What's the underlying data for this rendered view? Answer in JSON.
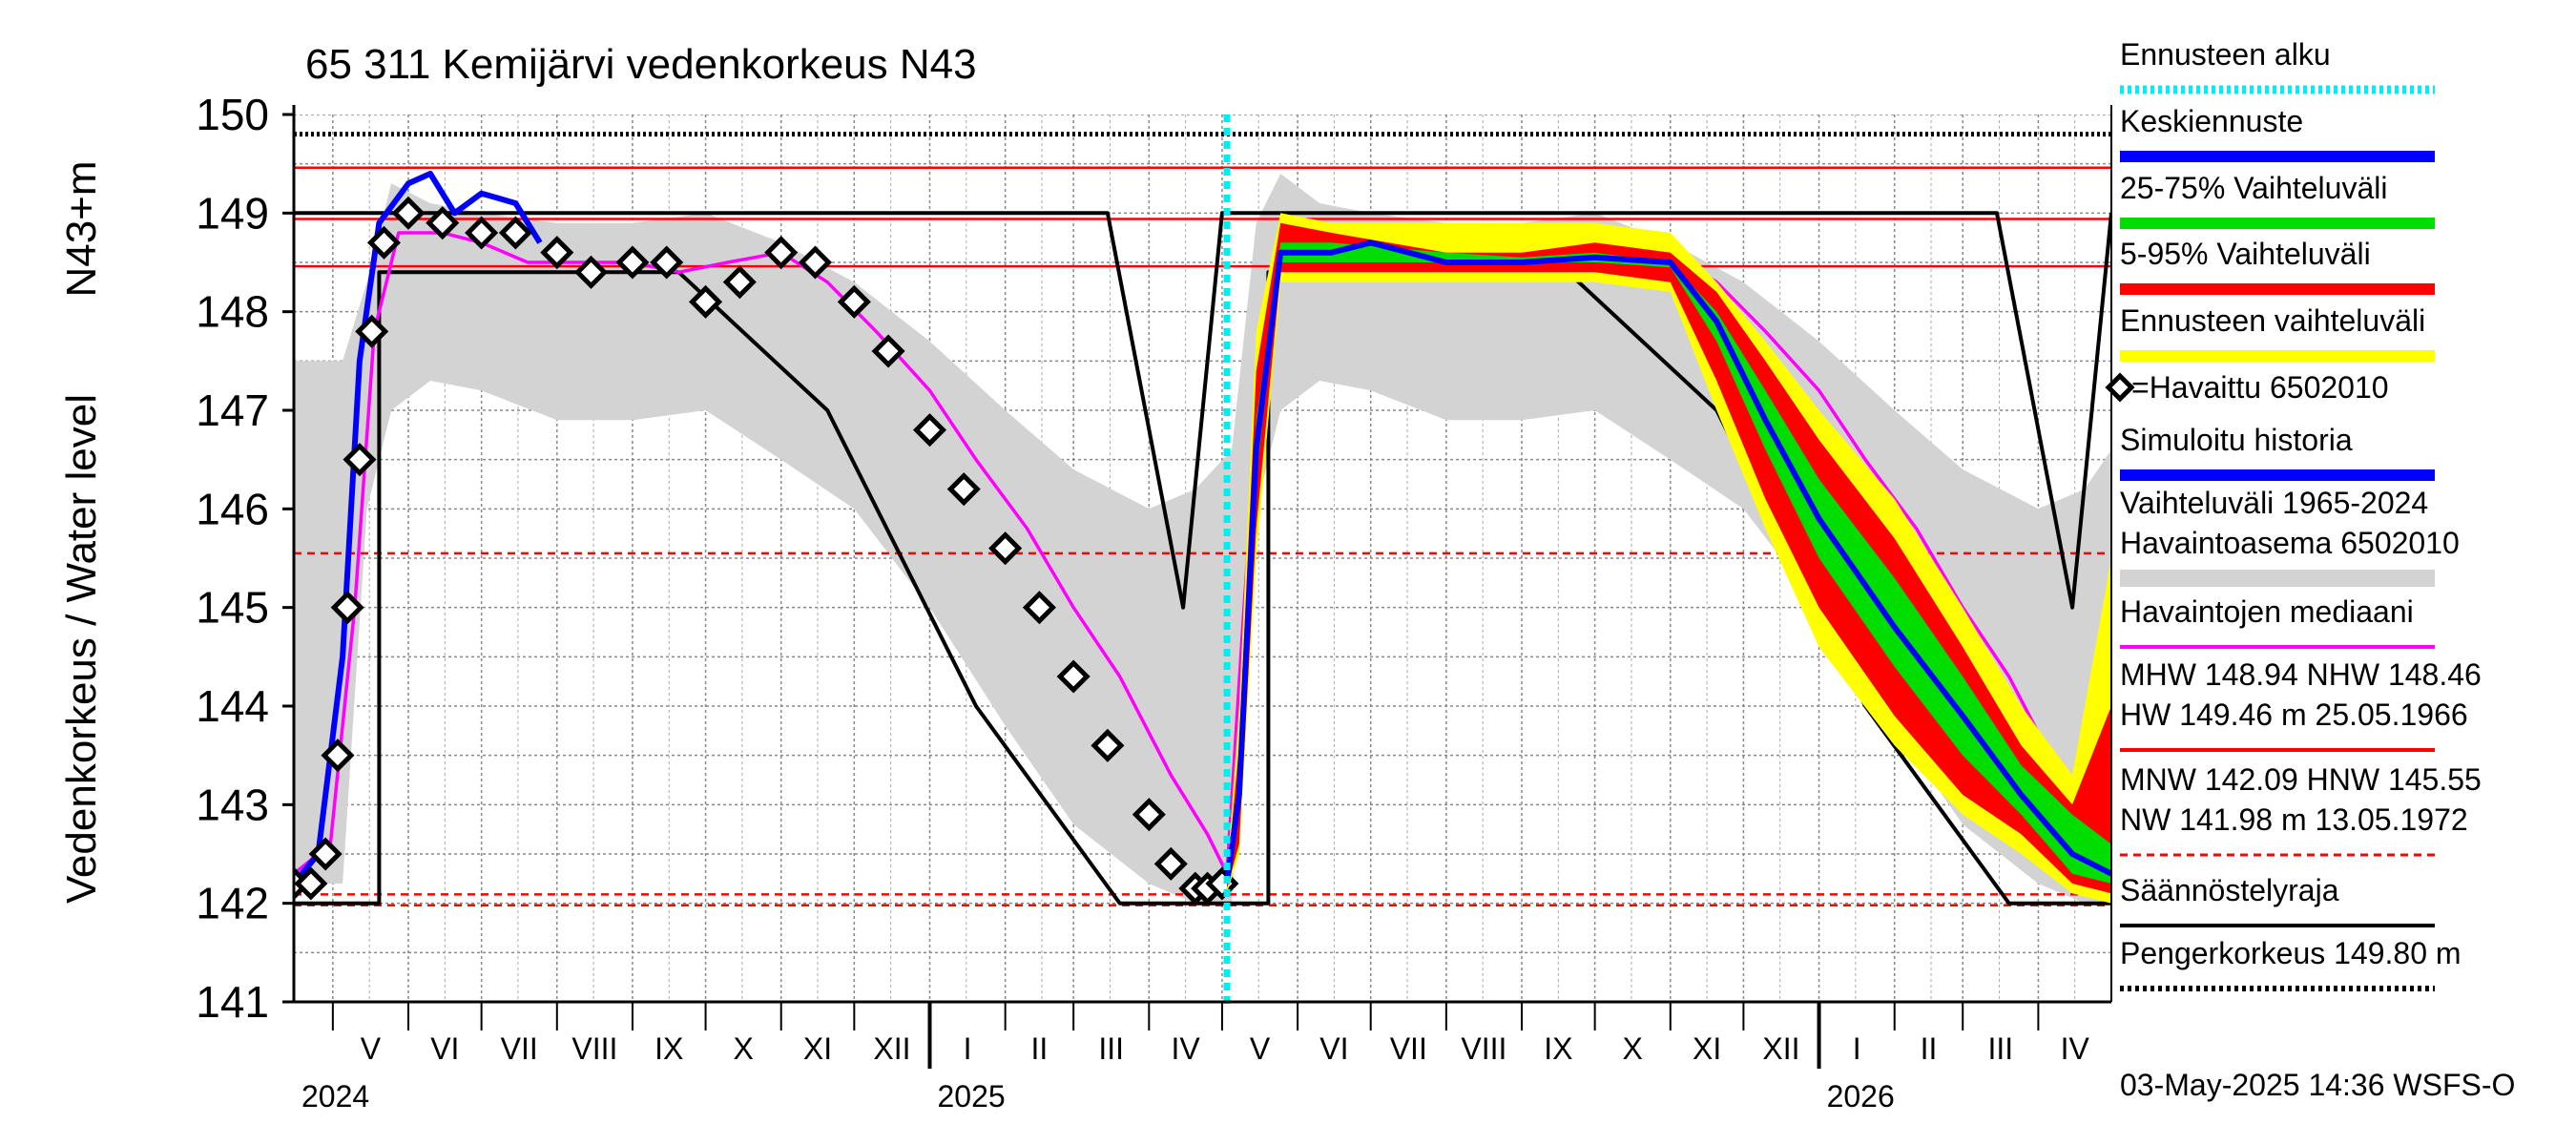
{
  "chart_data": {
    "type": "line",
    "title": "65 311 Kemijärvi vedenkorkeus N43",
    "ylabel": "Vedenkorkeus / Water level",
    "ylabel_unit": "N43+m",
    "ylim": [
      141,
      150
    ],
    "yticks": [
      "141",
      "142",
      "143",
      "144",
      "145",
      "146",
      "147",
      "148",
      "149",
      "150"
    ],
    "xlim": [
      "2024-04-15",
      "2026-05-01"
    ],
    "forecast_start": "2025-05-03",
    "month_labels": [
      {
        "date": "2024-05-01",
        "label": "V"
      },
      {
        "date": "2024-06-01",
        "label": "VI"
      },
      {
        "date": "2024-07-01",
        "label": "VII"
      },
      {
        "date": "2024-08-01",
        "label": "VIII"
      },
      {
        "date": "2024-09-01",
        "label": "IX"
      },
      {
        "date": "2024-10-01",
        "label": "X"
      },
      {
        "date": "2024-11-01",
        "label": "XI"
      },
      {
        "date": "2024-12-01",
        "label": "XII"
      },
      {
        "date": "2025-01-01",
        "label": "I"
      },
      {
        "date": "2025-02-01",
        "label": "II"
      },
      {
        "date": "2025-03-01",
        "label": "III"
      },
      {
        "date": "2025-04-01",
        "label": "IV"
      },
      {
        "date": "2025-05-01",
        "label": "V"
      },
      {
        "date": "2025-06-01",
        "label": "VI"
      },
      {
        "date": "2025-07-01",
        "label": "VII"
      },
      {
        "date": "2025-08-01",
        "label": "VIII"
      },
      {
        "date": "2025-09-01",
        "label": "IX"
      },
      {
        "date": "2025-10-01",
        "label": "X"
      },
      {
        "date": "2025-11-01",
        "label": "XI"
      },
      {
        "date": "2025-12-01",
        "label": "XII"
      },
      {
        "date": "2026-01-01",
        "label": "I"
      },
      {
        "date": "2026-02-01",
        "label": "II"
      },
      {
        "date": "2026-03-01",
        "label": "III"
      },
      {
        "date": "2026-04-01",
        "label": "IV"
      }
    ],
    "year_labels": [
      {
        "date": "2024-04-15",
        "label": "2024"
      },
      {
        "date": "2025-01-01",
        "label": "2025"
      },
      {
        "date": "2026-01-01",
        "label": "2026"
      }
    ],
    "hlines": [
      {
        "name": "Pengerkorkeus",
        "value": 149.8,
        "color": "#000000",
        "style": "dotted"
      },
      {
        "name": "HW",
        "value": 149.46,
        "color": "#ff0000",
        "style": "solid"
      },
      {
        "name": "MHW",
        "value": 148.94,
        "color": "#ff0000",
        "style": "solid"
      },
      {
        "name": "NHW",
        "value": 148.46,
        "color": "#ff0000",
        "style": "solid"
      },
      {
        "name": "HNW",
        "value": 145.55,
        "color": "#ff0000",
        "style": "dashed"
      },
      {
        "name": "MNW",
        "value": 142.09,
        "color": "#ff0000",
        "style": "dashed"
      },
      {
        "name": "NW",
        "value": 141.98,
        "color": "#ff0000",
        "style": "dashed"
      }
    ],
    "series": [
      {
        "name": "Vaihteluväli 1965-2024 Havaintoasema 6502010",
        "kind": "band",
        "color": "#d3d3d3",
        "x": [
          "2024-04-15",
          "2024-05-05",
          "2024-05-15",
          "2024-05-25",
          "2024-06-10",
          "2024-07-01",
          "2024-08-01",
          "2024-09-01",
          "2024-10-01",
          "2024-11-01",
          "2024-12-01",
          "2025-01-01",
          "2025-02-01",
          "2025-03-01",
          "2025-04-01",
          "2025-04-20",
          "2025-05-05",
          "2025-05-15",
          "2025-05-25",
          "2025-06-10",
          "2025-07-01",
          "2025-08-01",
          "2025-09-01",
          "2025-10-01",
          "2025-11-01",
          "2025-12-01",
          "2026-01-01",
          "2026-02-01",
          "2026-03-01",
          "2026-04-01",
          "2026-04-20",
          "2026-05-01"
        ],
        "upper": [
          147.5,
          147.5,
          148.3,
          149.3,
          149.1,
          149.0,
          148.9,
          148.9,
          149.0,
          148.7,
          148.3,
          147.7,
          147.0,
          146.4,
          146.0,
          146.2,
          146.6,
          148.9,
          149.4,
          149.1,
          149.0,
          148.9,
          148.9,
          149.0,
          148.7,
          148.3,
          147.7,
          147.0,
          146.4,
          146.0,
          146.2,
          146.6
        ],
        "lower": [
          142.2,
          142.2,
          146.0,
          147.0,
          147.3,
          147.2,
          146.9,
          146.9,
          147.0,
          146.5,
          146.0,
          145.0,
          143.8,
          142.8,
          142.2,
          142.0,
          142.0,
          146.0,
          147.0,
          147.3,
          147.2,
          146.9,
          146.9,
          147.0,
          146.5,
          146.0,
          145.0,
          143.8,
          142.8,
          142.2,
          142.0,
          142.0
        ]
      },
      {
        "name": "Säännöstelyraja (yläraja)",
        "kind": "line",
        "color": "#000000",
        "x": [
          "2024-04-15",
          "2025-03-15",
          "2025-04-15",
          "2025-05-01",
          "2025-05-03",
          "2026-03-15",
          "2026-04-15",
          "2026-05-01"
        ],
        "y": [
          149.0,
          149.0,
          145.0,
          149.0,
          149.0,
          149.0,
          145.0,
          149.0
        ]
      },
      {
        "name": "Säännöstelyraja (alaraja)",
        "kind": "line",
        "color": "#000000",
        "x": [
          "2024-04-15",
          "2024-05-20",
          "2024-05-20",
          "2024-09-20",
          "2024-11-20",
          "2025-01-20",
          "2025-03-20",
          "2025-04-30",
          "2025-05-03",
          "2025-05-20",
          "2025-05-20",
          "2025-09-20",
          "2025-11-20",
          "2026-01-20",
          "2026-03-20",
          "2026-05-01"
        ],
        "y": [
          142.0,
          142.0,
          148.4,
          148.4,
          147.0,
          144.0,
          142.0,
          142.0,
          142.0,
          142.0,
          148.4,
          148.4,
          147.0,
          144.0,
          142.0,
          142.0
        ]
      },
      {
        "name": "Havaintojen mediaani",
        "kind": "line",
        "color": "#ff00ff",
        "x": [
          "2024-04-15",
          "2024-04-30",
          "2024-05-10",
          "2024-05-18",
          "2024-05-28",
          "2024-06-15",
          "2024-07-01",
          "2024-07-20",
          "2024-08-01",
          "2024-09-01",
          "2024-09-20",
          "2024-10-10",
          "2024-11-01",
          "2024-11-20",
          "2024-12-10",
          "2025-01-01",
          "2025-01-20",
          "2025-02-10",
          "2025-03-01",
          "2025-03-20",
          "2025-04-10",
          "2025-04-25",
          "2025-05-03",
          "2025-05-10",
          "2025-05-18",
          "2025-05-28",
          "2025-06-15",
          "2025-07-01",
          "2025-07-20",
          "2025-08-01",
          "2025-09-01",
          "2025-09-20",
          "2025-10-10",
          "2025-11-01",
          "2025-11-20",
          "2025-12-10",
          "2026-01-01",
          "2026-01-20",
          "2026-02-10",
          "2026-03-01",
          "2026-03-20",
          "2026-04-10",
          "2026-04-25",
          "2026-05-01"
        ],
        "y": [
          142.3,
          142.6,
          145.0,
          147.8,
          148.8,
          148.8,
          148.7,
          148.5,
          148.5,
          148.5,
          148.4,
          148.5,
          148.6,
          148.3,
          147.8,
          147.2,
          146.5,
          145.8,
          145.0,
          144.3,
          143.3,
          142.7,
          142.3,
          145.0,
          147.8,
          148.8,
          148.8,
          148.7,
          148.5,
          148.5,
          148.5,
          148.4,
          148.5,
          148.6,
          148.3,
          147.8,
          147.2,
          146.5,
          145.8,
          145.0,
          144.3,
          143.3,
          142.7,
          142.3
        ]
      },
      {
        "name": "Simuloitu historia",
        "kind": "line",
        "color": "#0000ff",
        "x": [
          "2024-04-15",
          "2024-04-25",
          "2024-05-05",
          "2024-05-12",
          "2024-05-20",
          "2024-06-01",
          "2024-06-10",
          "2024-06-20",
          "2024-07-01",
          "2024-07-15",
          "2024-07-25"
        ],
        "y": [
          142.2,
          142.5,
          144.5,
          147.5,
          148.9,
          149.3,
          149.4,
          149.0,
          149.2,
          149.1,
          148.7
        ]
      },
      {
        "name": "Havaittu 6502010",
        "kind": "points",
        "color": "#000000",
        "x": [
          "2024-04-15",
          "2024-04-22",
          "2024-04-28",
          "2024-05-03",
          "2024-05-07",
          "2024-05-12",
          "2024-05-17",
          "2024-05-22",
          "2024-06-01",
          "2024-06-15",
          "2024-07-01",
          "2024-07-15",
          "2024-08-01",
          "2024-08-15",
          "2024-09-01",
          "2024-09-15",
          "2024-10-01",
          "2024-10-15",
          "2024-11-01",
          "2024-11-15",
          "2024-12-01",
          "2024-12-15",
          "2025-01-01",
          "2025-01-15",
          "2025-02-01",
          "2025-02-15",
          "2025-03-01",
          "2025-03-15",
          "2025-04-01",
          "2025-04-10",
          "2025-04-20",
          "2025-04-25",
          "2025-05-01"
        ],
        "y": [
          142.2,
          142.2,
          142.5,
          143.5,
          145.0,
          146.5,
          147.8,
          148.7,
          149.0,
          148.9,
          148.8,
          148.8,
          148.6,
          148.4,
          148.5,
          148.5,
          148.1,
          148.3,
          148.6,
          148.5,
          148.1,
          147.6,
          146.8,
          146.2,
          145.6,
          145.0,
          144.3,
          143.6,
          142.9,
          142.4,
          142.15,
          142.15,
          142.2
        ]
      },
      {
        "name": "Ennusteen vaihteluväli",
        "kind": "band",
        "color": "#ffff00",
        "x": [
          "2025-05-03",
          "2025-05-08",
          "2025-05-15",
          "2025-05-25",
          "2025-06-15",
          "2025-08-01",
          "2025-09-01",
          "2025-10-01",
          "2025-11-01",
          "2025-11-20",
          "2025-12-10",
          "2026-01-01",
          "2026-02-01",
          "2026-03-01",
          "2026-03-25",
          "2026-04-15",
          "2026-05-01"
        ],
        "upper": [
          142.3,
          144.0,
          147.8,
          149.0,
          148.9,
          148.9,
          148.9,
          148.9,
          148.8,
          148.3,
          147.7,
          147.0,
          146.1,
          145.0,
          144.0,
          143.3,
          145.5
        ],
        "lower": [
          142.1,
          142.5,
          145.5,
          148.3,
          148.3,
          148.3,
          148.3,
          148.3,
          148.2,
          147.0,
          145.8,
          144.6,
          143.6,
          142.9,
          142.5,
          142.1,
          142.0
        ]
      },
      {
        "name": "5-95% Vaihteluväli",
        "kind": "band",
        "color": "#ff0000",
        "x": [
          "2025-05-03",
          "2025-05-08",
          "2025-05-15",
          "2025-05-25",
          "2025-06-15",
          "2025-08-01",
          "2025-09-01",
          "2025-10-01",
          "2025-11-01",
          "2025-11-20",
          "2025-12-10",
          "2026-01-01",
          "2026-02-01",
          "2026-03-01",
          "2026-03-25",
          "2026-04-15",
          "2026-05-01"
        ],
        "upper": [
          142.25,
          143.6,
          147.4,
          148.9,
          148.8,
          148.6,
          148.6,
          148.7,
          148.6,
          148.2,
          147.5,
          146.7,
          145.7,
          144.6,
          143.6,
          143.0,
          144.0
        ],
        "lower": [
          142.15,
          142.6,
          145.8,
          148.4,
          148.4,
          148.4,
          148.4,
          148.4,
          148.3,
          147.3,
          146.1,
          145.0,
          143.9,
          143.1,
          142.7,
          142.2,
          142.1
        ]
      },
      {
        "name": "25-75% Vaihteluväli",
        "kind": "band",
        "color": "#00dd00",
        "x": [
          "2025-05-03",
          "2025-05-08",
          "2025-05-15",
          "2025-05-25",
          "2025-06-15",
          "2025-08-01",
          "2025-09-01",
          "2025-10-01",
          "2025-11-01",
          "2025-11-20",
          "2025-12-10",
          "2026-01-01",
          "2026-02-01",
          "2026-03-01",
          "2026-03-25",
          "2026-04-15",
          "2026-05-01"
        ],
        "upper": [
          142.2,
          143.3,
          146.9,
          148.7,
          148.7,
          148.6,
          148.55,
          148.6,
          148.5,
          148.0,
          147.2,
          146.3,
          145.3,
          144.3,
          143.4,
          142.9,
          142.6
        ],
        "lower": [
          142.2,
          142.9,
          146.3,
          148.5,
          148.5,
          148.5,
          148.5,
          148.5,
          148.45,
          147.7,
          146.6,
          145.5,
          144.4,
          143.5,
          142.9,
          142.3,
          142.2
        ]
      },
      {
        "name": "Keskiennuste",
        "kind": "line",
        "color": "#0000ff",
        "x": [
          "2025-05-03",
          "2025-05-08",
          "2025-05-15",
          "2025-05-25",
          "2025-06-15",
          "2025-07-01",
          "2025-08-01",
          "2025-09-01",
          "2025-10-01",
          "2025-11-01",
          "2025-11-20",
          "2025-12-10",
          "2026-01-01",
          "2026-02-01",
          "2026-03-01",
          "2026-03-25",
          "2026-04-15",
          "2026-05-01"
        ],
        "y": [
          142.2,
          143.1,
          146.6,
          148.6,
          148.6,
          148.7,
          148.5,
          148.5,
          148.55,
          148.5,
          147.9,
          146.9,
          145.9,
          144.8,
          143.9,
          143.1,
          142.5,
          142.3
        ]
      }
    ],
    "legend": [
      {
        "label": "Ennusteen alku",
        "color": "#00eeee",
        "style": "dotted"
      },
      {
        "label": "Keskiennuste",
        "color": "#0000ff",
        "style": "thick"
      },
      {
        "label": "25-75% Vaihteluväli",
        "color": "#00dd00",
        "style": "thick"
      },
      {
        "label": "5-95% Vaihteluväli",
        "color": "#ff0000",
        "style": "thick"
      },
      {
        "label": "Ennusteen vaihteluväli",
        "color": "#ffff00",
        "style": "thick"
      },
      {
        "label": "=Havaittu 6502010",
        "color": "#000000",
        "style": "marker"
      },
      {
        "label": "Simuloitu historia",
        "color": "#0000ff",
        "style": "thick"
      },
      {
        "label": "Vaihteluväli 1965-2024",
        "label2": " Havaintoasema 6502010",
        "color": "#d3d3d3",
        "style": "band"
      },
      {
        "label": "Havaintojen mediaani",
        "color": "#ff00ff",
        "style": "line"
      },
      {
        "label": "MHW 148.94 NHW 148.46",
        "label2": "HW 149.46 m 25.05.1966",
        "color": "#ff0000",
        "style": "line"
      },
      {
        "label": "MNW 142.09 HNW 145.55",
        "label2": "NW 141.98 m 13.05.1972",
        "color": "#ff0000",
        "style": "dashed"
      },
      {
        "label": "Säännöstelyraja",
        "color": "#000000",
        "style": "line"
      },
      {
        "label": "Pengerkorkeus 149.80 m",
        "color": "#000000",
        "style": "dotted"
      }
    ],
    "footer": "03-May-2025 14:36 WSFS-O"
  }
}
